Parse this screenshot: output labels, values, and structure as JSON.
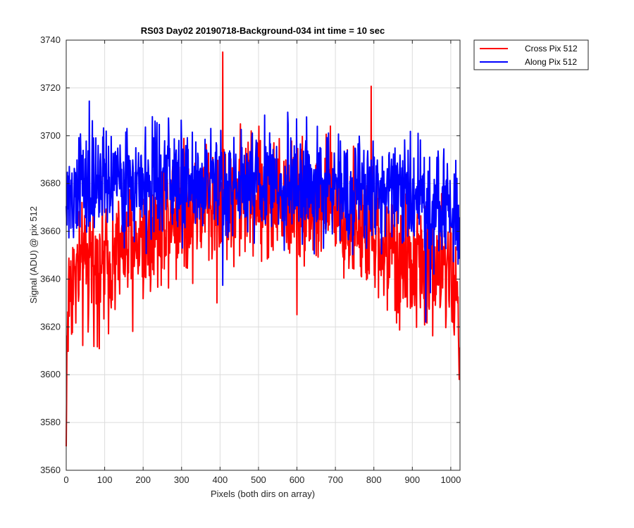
{
  "chart_data": {
    "type": "line",
    "title": "RS03 Day02 20190718-Background-034 int time = 10 sec",
    "xlabel": "Pixels (both dirs on array)",
    "ylabel": "Signal (ADU) @ pix 512",
    "xlim": [
      0,
      1024
    ],
    "ylim": [
      3560,
      3740
    ],
    "xticks": [
      0,
      100,
      200,
      300,
      400,
      500,
      600,
      700,
      800,
      900,
      1000
    ],
    "yticks": [
      3560,
      3580,
      3600,
      3620,
      3640,
      3660,
      3680,
      3700,
      3720,
      3740
    ],
    "grid": true,
    "legend_position": "outside-top-right",
    "n_points": 1024,
    "series": [
      {
        "name": "Cross Pix 512",
        "color": "#ff0000",
        "profile_x": [
          0,
          2,
          10,
          50,
          100,
          150,
          200,
          250,
          300,
          400,
          500,
          600,
          700,
          750,
          800,
          850,
          900,
          950,
          1000,
          1023
        ],
        "profile_mean": [
          3570,
          3618,
          3640,
          3645,
          3648,
          3652,
          3657,
          3666,
          3670,
          3674,
          3675,
          3673,
          3670,
          3664,
          3656,
          3650,
          3647,
          3645,
          3645,
          3628
        ],
        "noise_amplitude": 13,
        "min": 3570,
        "max": 3735
      },
      {
        "name": "Along Pix 512",
        "color": "#0000ff",
        "profile_x": [
          0,
          50,
          100,
          200,
          300,
          400,
          500,
          600,
          700,
          800,
          900,
          1000,
          1023
        ],
        "profile_mean": [
          3675,
          3678,
          3680,
          3680,
          3680,
          3681,
          3680,
          3679,
          3679,
          3678,
          3674,
          3672,
          3658
        ],
        "noise_amplitude": 11,
        "min": 3622,
        "max": 3733
      }
    ]
  },
  "colors": {
    "axis": "#262626",
    "grid": "#dcdcdc",
    "background": "#ffffff"
  }
}
